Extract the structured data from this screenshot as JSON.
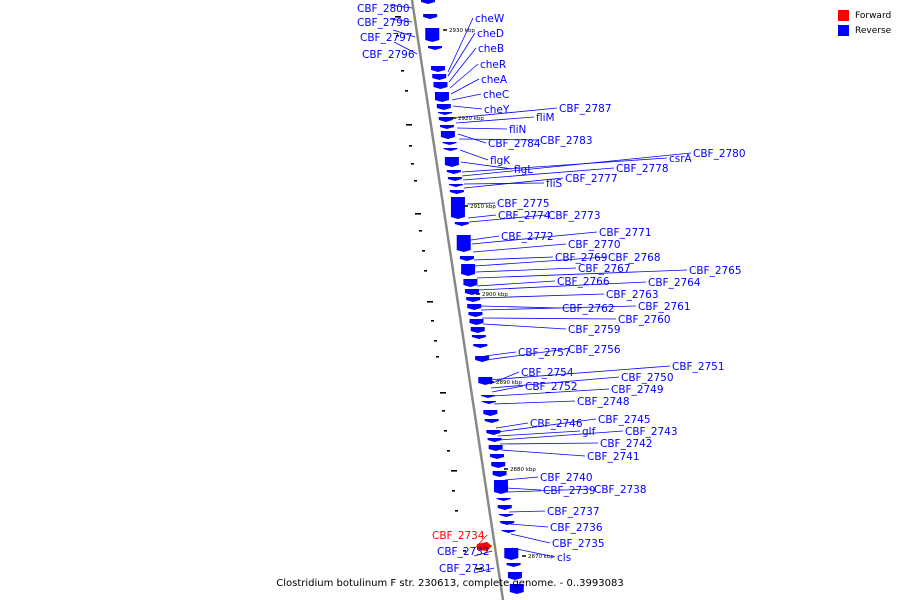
{
  "legend": {
    "items": [
      {
        "label": "Forward",
        "color": "#ff0000"
      },
      {
        "label": "Reverse",
        "color": "#0000ff"
      }
    ]
  },
  "caption": "Clostridium botulinum F str. 230613, complete genome. - 0..3993083",
  "colors": {
    "forward": "#ff0000",
    "reverse": "#0000ff",
    "backbone": "#888888"
  },
  "ticks": [
    "2930 kbp",
    "2920 kbp",
    "2910 kbp",
    "2900 kbp",
    "2890 kbp",
    "2880 kbp",
    "2870 kbp"
  ],
  "labels": {
    "left": [
      "CBF_2800",
      "CBF_2798",
      "CBF_2797",
      "CBF_2796",
      "CBF_2734",
      "CBF_2732",
      "CBF_2731"
    ],
    "right": [
      "cheW",
      "cheD",
      "cheB",
      "cheR",
      "cheA",
      "cheC",
      "cheY",
      "CBF_2787",
      "fliM",
      "fliN",
      "CBF_2784",
      "CBF_2783",
      "flgK",
      "flgL",
      "csrA",
      "CBF_2780",
      "CBF_2778",
      "fliS",
      "CBF_2777",
      "CBF_2775",
      "CBF_2774",
      "CBF_2773",
      "CBF_2772",
      "CBF_2771",
      "CBF_2770",
      "CBF_2769",
      "CBF_2768",
      "CBF_2767",
      "CBF_2765",
      "CBF_2766",
      "CBF_2764",
      "CBF_2763",
      "CBF_2762",
      "CBF_2761",
      "CBF_2760",
      "CBF_2759",
      "CBF_2757",
      "CBF_2756",
      "CBF_2751",
      "CBF_2754",
      "CBF_2750",
      "CBF_2752",
      "CBF_2749",
      "CBF_2748",
      "CBF_2746",
      "CBF_2745",
      "glf",
      "CBF_2743",
      "CBF_2742",
      "CBF_2741",
      "CBF_2740",
      "CBF_2739",
      "CBF_2738",
      "CBF_2737",
      "CBF_2736",
      "CBF_2735",
      "cls"
    ]
  }
}
